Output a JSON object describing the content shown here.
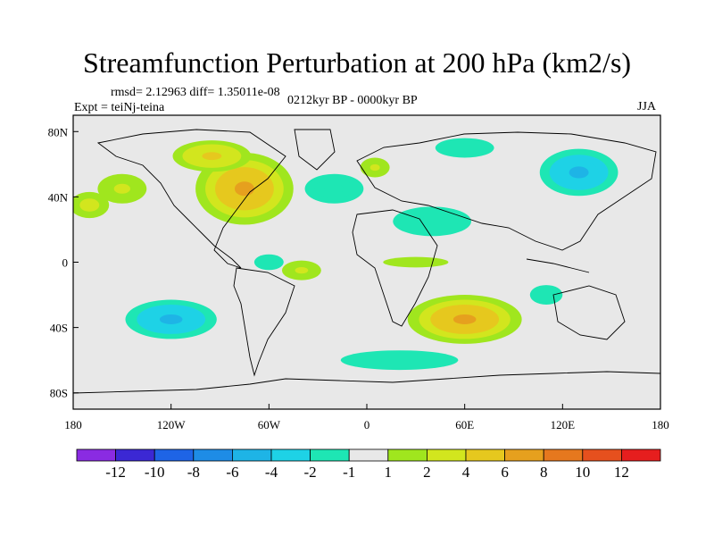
{
  "chart_data": {
    "type": "heatmap",
    "title": "Streamfunction Perturbation at 200 hPa (km2/s)",
    "stats_text": "rmsd= 2.12963 diff= 1.35011e-08",
    "experiment_text": "Expt = teiNj-teina",
    "period_text": "0212kyr BP - 0000kyr BP",
    "season": "JJA",
    "xlabel": "",
    "ylabel": "",
    "xlim": [
      -180,
      180
    ],
    "ylim": [
      -90,
      90
    ],
    "x_ticks": [
      {
        "value": -180,
        "label": "180"
      },
      {
        "value": -120,
        "label": "120W"
      },
      {
        "value": -60,
        "label": "60W"
      },
      {
        "value": 0,
        "label": "0"
      },
      {
        "value": 60,
        "label": "60E"
      },
      {
        "value": 120,
        "label": "120E"
      },
      {
        "value": 180,
        "label": "180"
      }
    ],
    "y_ticks": [
      {
        "value": 80,
        "label": "80N"
      },
      {
        "value": 40,
        "label": "40N"
      },
      {
        "value": 0,
        "label": "0"
      },
      {
        "value": -40,
        "label": "40S"
      },
      {
        "value": -80,
        "label": "80S"
      }
    ],
    "colorbar": {
      "colors": [
        "#8a2be2",
        "#3b28d4",
        "#1e64e6",
        "#1e8ce6",
        "#1eb4e6",
        "#1ed2e6",
        "#1ee6b4",
        "#e8e8e8",
        "#a0e61e",
        "#d2e61e",
        "#e6c81e",
        "#e6a01e",
        "#e6781e",
        "#e6501e",
        "#e61e1e"
      ],
      "labels": [
        "-12",
        "-10",
        "-8",
        "-6",
        "-4",
        "-2",
        "-1",
        "1",
        "2",
        "4",
        "6",
        "8",
        "10",
        "12"
      ]
    },
    "features": [
      {
        "name": "north-america-high",
        "lon": -75,
        "lat": 45,
        "peak": 7,
        "rlon": 30,
        "rlat": 22
      },
      {
        "name": "canada-high",
        "lon": -95,
        "lat": 65,
        "peak": 4,
        "rlon": 30,
        "rlat": 12
      },
      {
        "name": "pacific-ne-high",
        "lon": -150,
        "lat": 45,
        "peak": 2,
        "rlon": 25,
        "rlat": 15
      },
      {
        "name": "west-pacific-high",
        "lon": -170,
        "lat": 35,
        "peak": 3,
        "rlon": 15,
        "rlat": 10
      },
      {
        "name": "north-atlantic-low",
        "lon": -20,
        "lat": 45,
        "peak": -2,
        "rlon": 30,
        "rlat": 15
      },
      {
        "name": "europe-high",
        "lon": 5,
        "lat": 58,
        "peak": 2,
        "rlon": 15,
        "rlat": 10
      },
      {
        "name": "asia-low",
        "lon": 130,
        "lat": 55,
        "peak": -5,
        "rlon": 30,
        "rlat": 18
      },
      {
        "name": "siberia-low",
        "lon": 60,
        "lat": 70,
        "peak": -2,
        "rlon": 30,
        "rlat": 10
      },
      {
        "name": "mideast-low",
        "lon": 40,
        "lat": 25,
        "peak": -2,
        "rlon": 40,
        "rlat": 15
      },
      {
        "name": "tropics-africa-high",
        "lon": 30,
        "lat": 0,
        "peak": 1.5,
        "rlon": 50,
        "rlat": 8
      },
      {
        "name": "south-africa-high",
        "lon": 60,
        "lat": -35,
        "peak": 7,
        "rlon": 35,
        "rlat": 15
      },
      {
        "name": "south-pacific-low",
        "lon": -120,
        "lat": -35,
        "peak": -5,
        "rlon": 35,
        "rlat": 15
      },
      {
        "name": "southern-ocean-low",
        "lon": 20,
        "lat": -60,
        "peak": -2,
        "rlon": 60,
        "rlat": 10
      },
      {
        "name": "indian-ocean-low",
        "lon": 110,
        "lat": -20,
        "peak": -1.5,
        "rlon": 25,
        "rlat": 15
      },
      {
        "name": "atlantic-trop-high",
        "lon": -40,
        "lat": -5,
        "peak": 2,
        "rlon": 20,
        "rlat": 10
      },
      {
        "name": "caribbean-low",
        "lon": -60,
        "lat": 0,
        "peak": -2,
        "rlon": 15,
        "rlat": 8
      }
    ]
  }
}
